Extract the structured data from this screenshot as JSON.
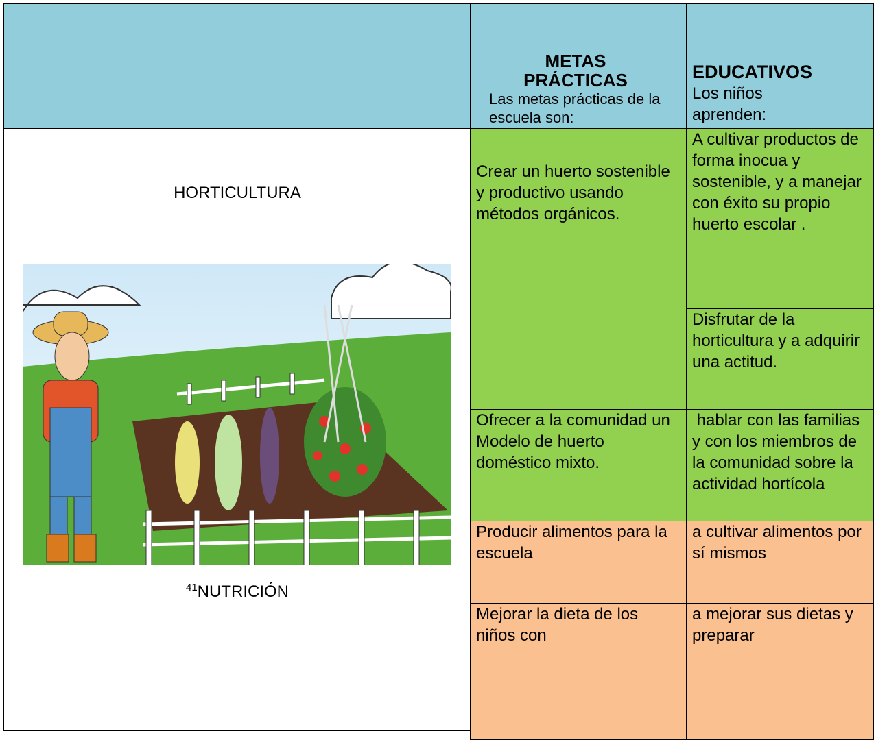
{
  "table": {
    "header": {
      "columns": [
        {
          "title": "METAS PRÁCTICAS",
          "subtitle": "Las metas prácticas de la escuela son:"
        },
        {
          "title": "EDUCATIVOS",
          "subtitle": "Los niños aprenden:"
        }
      ]
    },
    "sections": [
      {
        "label": "HORTICULTURA",
        "goals": [
          "Crear un huerto sostenible y productivo usando métodos orgánicos.",
          "Ofrecer a la comunidad un Modelo de huerto doméstico mixto."
        ],
        "learning": [
          "A cultivar productos de forma inocua y sostenible, y a manejar con éxito su propio huerto escolar .",
          "Disfrutar de la horticultura y a adquirir una actitud.",
          " hablar con las familias y con los miembros de la comunidad sobre la actividad hortícola"
        ]
      },
      {
        "footnote": "41",
        "label": "NUTRICIÓN",
        "goals": [
          "Producir alimentos para la escuela",
          "Mejorar la dieta de los niños con"
        ],
        "learning": [
          "a cultivar alimentos por sí mismos",
          "a mejorar sus dietas y preparar"
        ]
      }
    ]
  }
}
